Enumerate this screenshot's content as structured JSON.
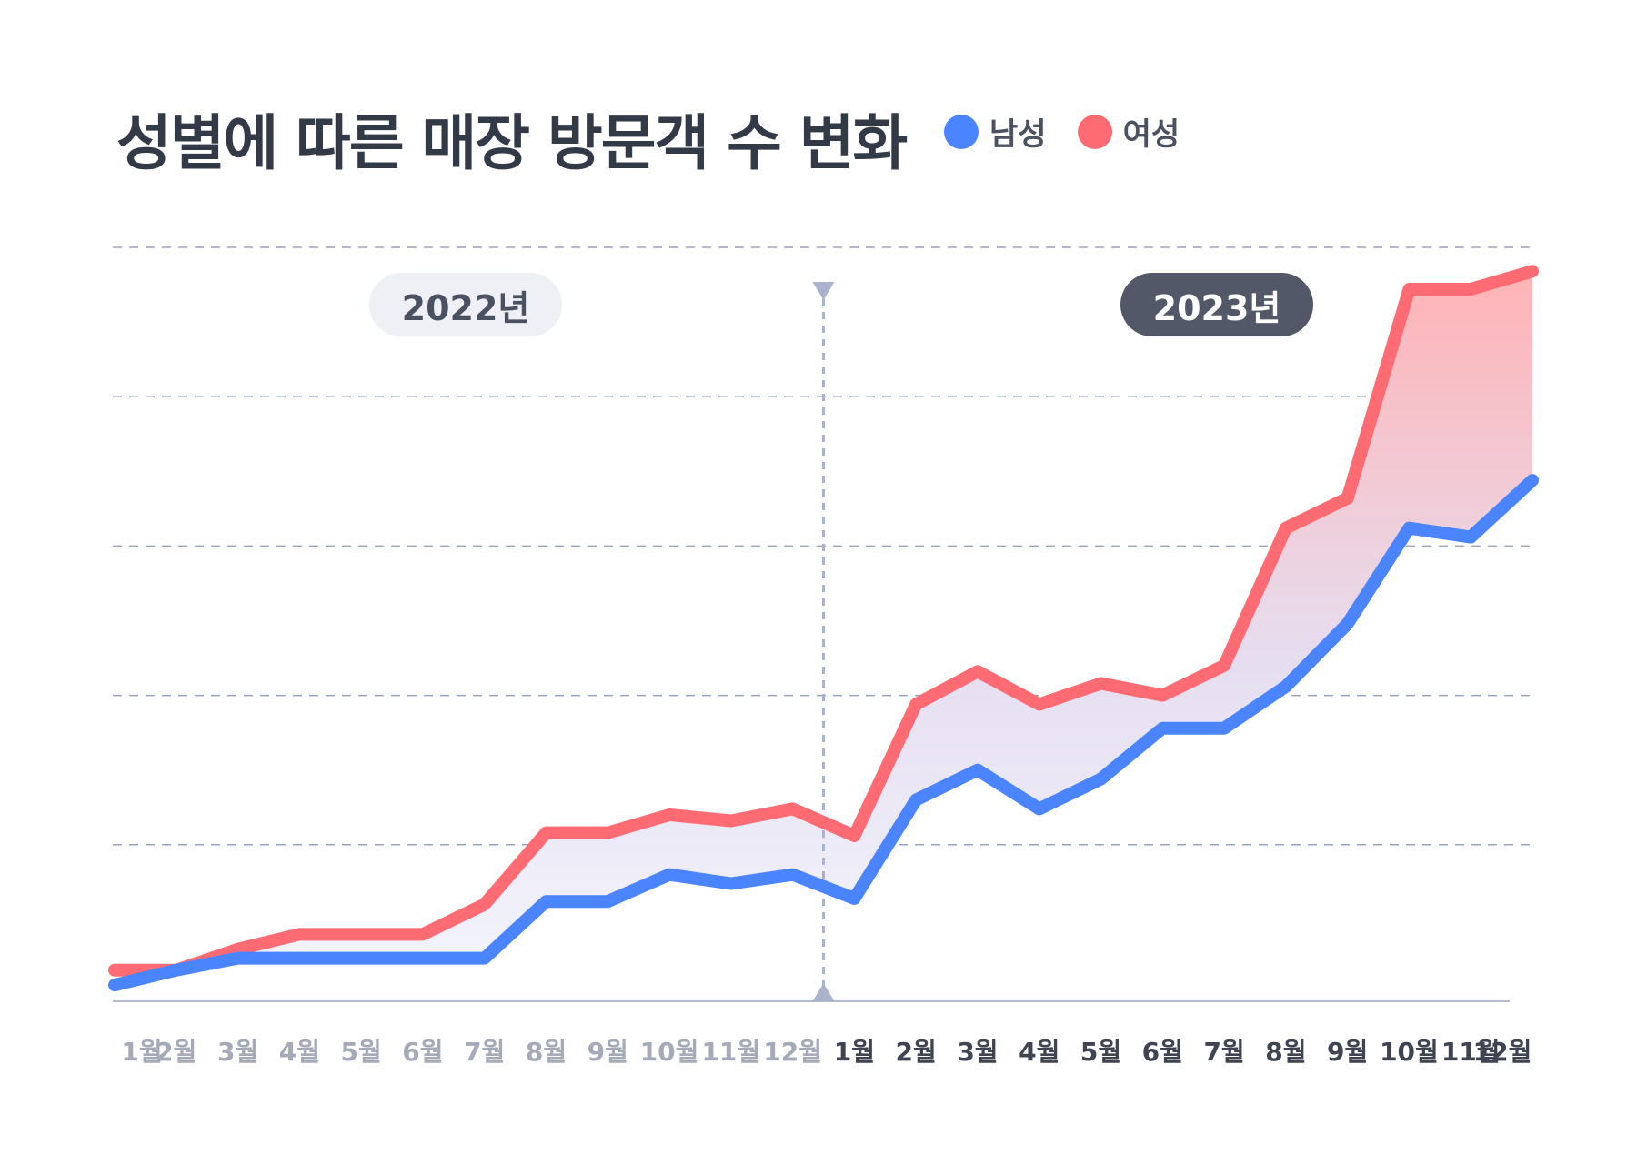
{
  "title": "성별에 따른 매장 방문객 수 변화",
  "legend": [
    {
      "label": "남성",
      "color": "#4a84ff"
    },
    {
      "label": "여성",
      "color": "#ff6b72"
    }
  ],
  "years": {
    "first": "2022년",
    "second": "2023년"
  },
  "chart_data": {
    "type": "line",
    "title": "성별에 따른 매장 방문객 수 변화",
    "categories": [
      "1월",
      "2월",
      "3월",
      "4월",
      "5월",
      "6월",
      "7월",
      "8월",
      "9월",
      "10월",
      "11월",
      "12월",
      "1월",
      "2월",
      "3월",
      "4월",
      "5월",
      "6월",
      "7월",
      "8월",
      "9월",
      "10월",
      "11월",
      "12월"
    ],
    "year_groups": [
      {
        "label": "2022년",
        "range": [
          0,
          11
        ]
      },
      {
        "label": "2023년",
        "range": [
          12,
          23
        ]
      }
    ],
    "series": [
      {
        "name": "남성",
        "color": "#4a84ff",
        "values": [
          0.3,
          0.8,
          1.2,
          1.2,
          1.2,
          1.2,
          1.2,
          3.1,
          3.1,
          4.0,
          3.7,
          4.0,
          3.2,
          6.5,
          7.5,
          6.2,
          7.2,
          8.9,
          8.9,
          10.3,
          12.4,
          15.6,
          15.3,
          17.2
        ]
      },
      {
        "name": "여성",
        "color": "#ff6b72",
        "values": [
          0.8,
          0.8,
          1.5,
          2.0,
          2.0,
          2.0,
          3.0,
          5.4,
          5.4,
          6.0,
          5.8,
          6.2,
          5.3,
          9.7,
          10.8,
          9.7,
          10.4,
          10.0,
          11.0,
          15.6,
          16.6,
          23.6,
          23.6,
          24.2
        ]
      }
    ],
    "ylim": [
      0,
      25
    ],
    "grid": true,
    "divider_after_index": 11
  }
}
